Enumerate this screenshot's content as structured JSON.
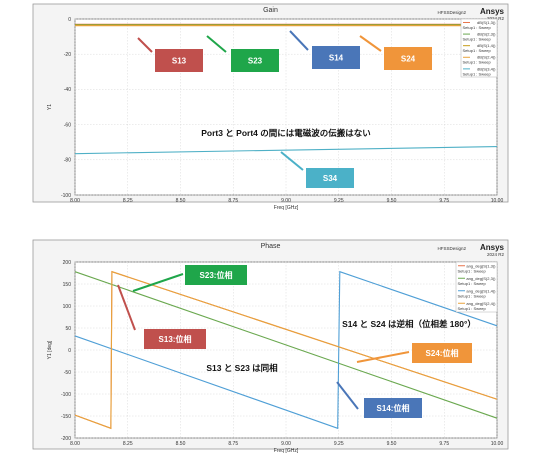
{
  "chart_data": [
    {
      "type": "line",
      "title": "Gain",
      "design": "HFSSDesign2",
      "brand": "Ansys",
      "brand_sub": "2024 R2",
      "xlabel": "Freq [GHz]",
      "ylabel": "Y1",
      "xlim": [
        8.0,
        10.0
      ],
      "ylim": [
        -100,
        0
      ],
      "xticks": [
        "8.00",
        "8.25",
        "8.50",
        "8.75",
        "9.00",
        "9.25",
        "9.50",
        "9.75",
        "10.00"
      ],
      "yticks": [
        "0",
        "-20",
        "-40",
        "-60",
        "-80",
        "-100"
      ],
      "grid": true,
      "legend_position": "top-right",
      "series": [
        {
          "name": "dB(S(1,3))",
          "setup": "Setup1 : Sweep",
          "color": "#e8734a",
          "x": [
            8.0,
            10.0
          ],
          "y": [
            -3.0,
            -3.0
          ]
        },
        {
          "name": "dB(S(2,3))",
          "setup": "Setup1 : Sweep",
          "color": "#6aa84f",
          "x": [
            8.0,
            10.0
          ],
          "y": [
            -3.2,
            -3.2
          ]
        },
        {
          "name": "dB(S(1,4))",
          "setup": "Setup1 : Sweep",
          "color": "#c59c1b",
          "x": [
            8.0,
            10.0
          ],
          "y": [
            -3.5,
            -3.5
          ]
        },
        {
          "name": "dB(S(2,4))",
          "setup": "Setup1 : Sweep",
          "color": "#e8a33c",
          "x": [
            8.0,
            10.0
          ],
          "y": [
            -3.8,
            -3.8
          ]
        },
        {
          "name": "dB(S(3,4))",
          "setup": "Setup1 : Sweep",
          "color": "#4fb0c6",
          "x": [
            8.0,
            10.0
          ],
          "y": [
            -76.5,
            -72.5
          ]
        }
      ],
      "annotation": "Port3 と Port4 の間には電磁波の伝搬はない",
      "callouts": [
        {
          "label": "S13",
          "color": "#c0504d"
        },
        {
          "label": "S23",
          "color": "#1fa64a"
        },
        {
          "label": "S14",
          "color": "#4a76b8"
        },
        {
          "label": "S24",
          "color": "#f0953a"
        },
        {
          "label": "S34",
          "color": "#4bb1c8"
        }
      ]
    },
    {
      "type": "line",
      "title": "Phase",
      "design": "HFSSDesign2",
      "brand": "Ansys",
      "brand_sub": "2024 R2",
      "xlabel": "Freq [GHz]",
      "ylabel": "Y1 [deg]",
      "xlim": [
        8.0,
        10.0
      ],
      "ylim": [
        -200,
        200
      ],
      "xticks": [
        "8.00",
        "8.25",
        "8.50",
        "8.75",
        "9.00",
        "9.25",
        "9.50",
        "9.75",
        "10.00"
      ],
      "yticks": [
        "200",
        "150",
        "100",
        "50",
        "0",
        "-50",
        "-100",
        "-150",
        "-200"
      ],
      "grid": true,
      "legend_position": "top-right",
      "series": [
        {
          "name": "ang_deg(S(1,3))",
          "setup": "Setup1 : Sweep",
          "color": "#e8734a",
          "x": [
            8.0,
            8.17,
            8.175,
            10.0
          ],
          "y": [
            -148,
            -178,
            178,
            -112
          ]
        },
        {
          "name": "ang_deg(S(2,3))",
          "setup": "Setup1 : Sweep",
          "color": "#6aa84f",
          "x": [
            8.0,
            10.0
          ],
          "y": [
            178,
            -155
          ]
        },
        {
          "name": "ang_deg(S(1,4))",
          "setup": "Setup1 : Sweep",
          "color": "#4f9fd6",
          "x": [
            8.0,
            9.245,
            9.255,
            10.0
          ],
          "y": [
            32,
            -178,
            178,
            55
          ]
        },
        {
          "name": "ang_deg(S(2,4))",
          "setup": "Setup1 : Sweep",
          "color": "#e8a33c",
          "x": [
            8.0,
            8.17,
            8.175,
            10.0
          ],
          "y": [
            -148,
            -178,
            178,
            -112
          ]
        }
      ],
      "annotations": [
        "S14 と S24 は逆相（位相差 180°）",
        "S13 と S23 は同相"
      ],
      "callouts": [
        {
          "label": "S23:位相",
          "color": "#1fa64a"
        },
        {
          "label": "S13:位相",
          "color": "#c0504d"
        },
        {
          "label": "S24:位相",
          "color": "#f0953a"
        },
        {
          "label": "S14:位相",
          "color": "#4a76b8"
        }
      ]
    }
  ]
}
